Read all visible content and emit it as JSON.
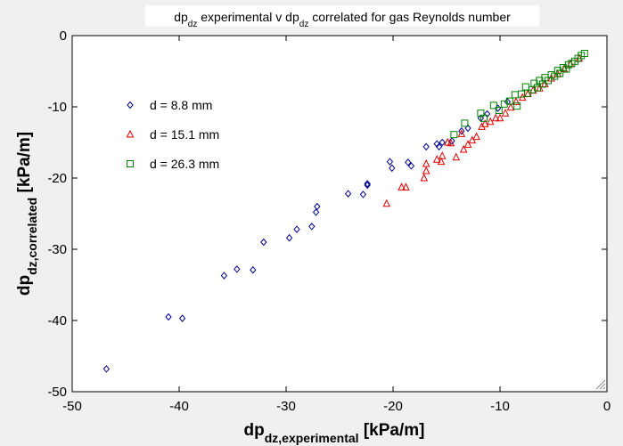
{
  "window": {
    "title": "dpdz experimental v dpdz correlated for gas Reynolds number"
  },
  "chart_data": {
    "type": "scatter",
    "title": {
      "parts": [
        {
          "text": "dp",
          "sub": false
        },
        {
          "text": "dz",
          "sub": true
        },
        {
          "text": " experimental v dp",
          "sub": false
        },
        {
          "text": "dz",
          "sub": true
        },
        {
          "text": " correlated for gas Reynolds number",
          "sub": false
        }
      ]
    },
    "xlabel": {
      "parts": [
        {
          "text": "dp",
          "sub": false
        },
        {
          "text": "dz,experimental",
          "sub": true
        },
        {
          "text": " [kPa/m]",
          "sub": false
        }
      ]
    },
    "ylabel": {
      "parts": [
        {
          "text": "dp",
          "sub": false
        },
        {
          "text": "dz,correlated",
          "sub": true
        },
        {
          "text": " [kPa/m]",
          "sub": false
        }
      ]
    },
    "xlim": [
      -50,
      0
    ],
    "ylim": [
      -50,
      0
    ],
    "xticks": [
      -50,
      -40,
      -30,
      -20,
      -10,
      0
    ],
    "yticks": [
      0,
      -10,
      -20,
      -30,
      -40,
      -50
    ],
    "grid": false,
    "legend_position": "upper-left inside",
    "series": [
      {
        "name": "d = 8.8 mm",
        "marker": "diamond",
        "color": "#00008b",
        "points": [
          [
            -46.8,
            -46.8
          ],
          [
            -41.0,
            -39.5
          ],
          [
            -39.7,
            -39.7
          ],
          [
            -35.8,
            -33.7
          ],
          [
            -34.6,
            -32.8
          ],
          [
            -33.1,
            -32.9
          ],
          [
            -32.1,
            -29.0
          ],
          [
            -29.7,
            -28.4
          ],
          [
            -29.0,
            -27.2
          ],
          [
            -27.6,
            -26.8
          ],
          [
            -27.2,
            -24.8
          ],
          [
            -27.1,
            -24.0
          ],
          [
            -24.2,
            -22.2
          ],
          [
            -22.8,
            -22.3
          ],
          [
            -22.4,
            -21.0
          ],
          [
            -22.4,
            -20.8
          ],
          [
            -20.3,
            -17.7
          ],
          [
            -20.1,
            -18.6
          ],
          [
            -18.6,
            -17.8
          ],
          [
            -18.3,
            -18.3
          ],
          [
            -16.9,
            -15.6
          ],
          [
            -15.9,
            -15.2
          ],
          [
            -15.7,
            -15.6
          ],
          [
            -15.4,
            -15.0
          ],
          [
            -14.5,
            -14.8
          ],
          [
            -13.6,
            -13.4
          ],
          [
            -13.0,
            -13.0
          ],
          [
            -11.8,
            -11.6
          ],
          [
            -11.2,
            -11.0
          ],
          [
            -10.2,
            -10.2
          ],
          [
            -9.3,
            -9.3
          ]
        ]
      },
      {
        "name": "d = 15.1 mm",
        "marker": "triangle",
        "color": "#e00000",
        "points": [
          [
            -20.6,
            -23.6
          ],
          [
            -19.2,
            -21.3
          ],
          [
            -18.8,
            -21.3
          ],
          [
            -17.1,
            -20.0
          ],
          [
            -16.9,
            -19.0
          ],
          [
            -16.9,
            -18.0
          ],
          [
            -15.9,
            -17.4
          ],
          [
            -15.5,
            -17.7
          ],
          [
            -15.4,
            -16.9
          ],
          [
            -14.9,
            -15.0
          ],
          [
            -14.6,
            -15.1
          ],
          [
            -14.1,
            -17.1
          ],
          [
            -13.6,
            -13.8
          ],
          [
            -13.4,
            -16.0
          ],
          [
            -13.0,
            -15.3
          ],
          [
            -12.6,
            -14.7
          ],
          [
            -12.2,
            -14.2
          ],
          [
            -11.7,
            -12.8
          ],
          [
            -11.4,
            -12.4
          ],
          [
            -10.9,
            -12.1
          ],
          [
            -10.4,
            -11.6
          ],
          [
            -10.0,
            -11.6
          ],
          [
            -9.5,
            -10.9
          ],
          [
            -9.0,
            -10.1
          ],
          [
            -8.5,
            -9.3
          ],
          [
            -7.9,
            -8.7
          ],
          [
            -7.4,
            -8.2
          ],
          [
            -6.9,
            -7.7
          ],
          [
            -6.3,
            -7.4
          ],
          [
            -5.8,
            -6.8
          ],
          [
            -5.2,
            -6.0
          ],
          [
            -4.6,
            -5.4
          ],
          [
            -4.0,
            -4.7
          ],
          [
            -3.4,
            -4.0
          ],
          [
            -2.6,
            -3.2
          ]
        ]
      },
      {
        "name": "d = 26.3 mm",
        "marker": "square",
        "color": "#008000",
        "points": [
          [
            -14.3,
            -13.9
          ],
          [
            -13.3,
            -12.3
          ],
          [
            -11.8,
            -10.9
          ],
          [
            -11.5,
            -11.6
          ],
          [
            -10.6,
            -9.8
          ],
          [
            -10.1,
            -10.5
          ],
          [
            -9.6,
            -9.6
          ],
          [
            -9.1,
            -9.2
          ],
          [
            -8.6,
            -8.3
          ],
          [
            -8.4,
            -9.9
          ],
          [
            -8.0,
            -8.2
          ],
          [
            -7.6,
            -7.2
          ],
          [
            -7.4,
            -8.1
          ],
          [
            -7.0,
            -7.6
          ],
          [
            -6.8,
            -6.7
          ],
          [
            -6.5,
            -7.3
          ],
          [
            -6.3,
            -6.3
          ],
          [
            -6.0,
            -6.8
          ],
          [
            -5.8,
            -5.9
          ],
          [
            -5.5,
            -6.3
          ],
          [
            -5.2,
            -5.5
          ],
          [
            -4.9,
            -5.7
          ],
          [
            -4.6,
            -4.9
          ],
          [
            -4.4,
            -5.3
          ],
          [
            -4.1,
            -4.5
          ],
          [
            -3.8,
            -4.7
          ],
          [
            -3.6,
            -4.1
          ],
          [
            -3.3,
            -3.9
          ],
          [
            -3.0,
            -3.6
          ],
          [
            -2.7,
            -3.2
          ],
          [
            -2.4,
            -2.8
          ],
          [
            -2.1,
            -2.5
          ]
        ]
      }
    ]
  }
}
